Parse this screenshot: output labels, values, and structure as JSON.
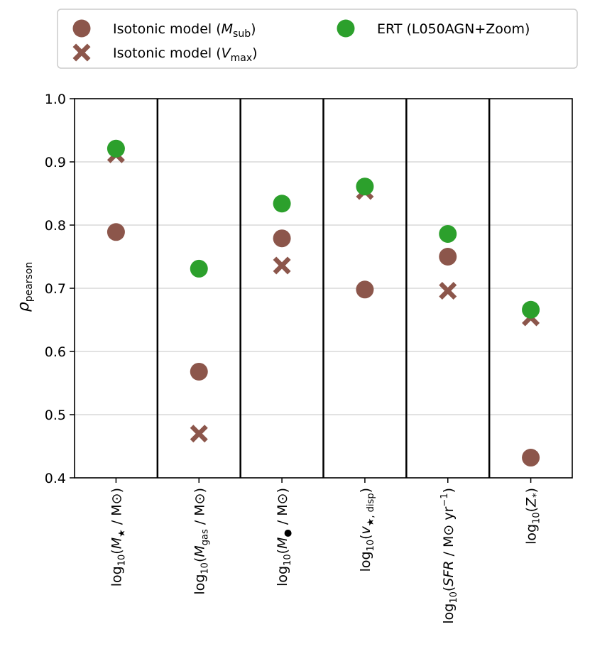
{
  "chart_data": {
    "type": "scatter",
    "ylabel": "ρ",
    "ylabel_sub": "pearson",
    "ylim": [
      0.4,
      1.0
    ],
    "yticks": [
      "0.4",
      "0.5",
      "0.6",
      "0.7",
      "0.8",
      "0.9",
      "1.0"
    ],
    "grid": "horizontal",
    "legend_position": "top",
    "categories": [
      {
        "pre": "log",
        "sub": "10",
        "body": [
          [
            "(",
            "n"
          ],
          [
            "M",
            "i"
          ],
          [
            "★",
            "s"
          ],
          [
            " / M",
            "n"
          ],
          [
            "⊙",
            "n"
          ],
          [
            ")",
            "n"
          ]
        ]
      },
      {
        "pre": "log",
        "sub": "10",
        "body": [
          [
            "(",
            "n"
          ],
          [
            "M",
            "i"
          ],
          [
            "gas",
            "s"
          ],
          [
            " / M",
            "n"
          ],
          [
            "⊙",
            "n"
          ],
          [
            ")",
            "n"
          ]
        ]
      },
      {
        "pre": "log",
        "sub": "10",
        "body": [
          [
            "(",
            "n"
          ],
          [
            "M",
            "i"
          ],
          [
            "●",
            "s"
          ],
          [
            " / M",
            "n"
          ],
          [
            "⊙",
            "n"
          ],
          [
            ")",
            "n"
          ]
        ]
      },
      {
        "pre": "log",
        "sub": "10",
        "body": [
          [
            "(",
            "n"
          ],
          [
            "v",
            "i"
          ],
          [
            "★, disp",
            "s"
          ],
          [
            ")",
            "n"
          ]
        ]
      },
      {
        "pre": "log",
        "sub": "10",
        "body": [
          [
            "(",
            "n"
          ],
          [
            "SFR",
            "i"
          ],
          [
            " / M",
            "n"
          ],
          [
            "⊙",
            "n"
          ],
          [
            " yr",
            "n"
          ],
          [
            "−1",
            "p"
          ],
          [
            ")",
            "n"
          ]
        ]
      },
      {
        "pre": "log",
        "sub": "10",
        "body": [
          [
            "(",
            "n"
          ],
          [
            "Z",
            "i"
          ],
          [
            "*",
            "s"
          ],
          [
            ")",
            "n"
          ]
        ]
      }
    ],
    "series": [
      {
        "name": "Isotonic model (M",
        "name_sub": "sub",
        "name_end": ")",
        "marker": "circle",
        "color": "#8c564b",
        "values": [
          0.789,
          0.568,
          0.779,
          0.698,
          0.75,
          0.432
        ]
      },
      {
        "name": "Isotonic model (V",
        "name_sub": "max",
        "name_end": ")",
        "marker": "x",
        "color": "#8c564b",
        "values": [
          0.912,
          0.47,
          0.736,
          0.854,
          0.696,
          0.654
        ]
      },
      {
        "name": "ERT (L050AGN+Zoom)",
        "name_sub": "",
        "name_end": "",
        "marker": "circle",
        "color": "#2ca02c",
        "values": [
          0.921,
          0.731,
          0.834,
          0.861,
          0.786,
          0.666
        ]
      }
    ]
  }
}
